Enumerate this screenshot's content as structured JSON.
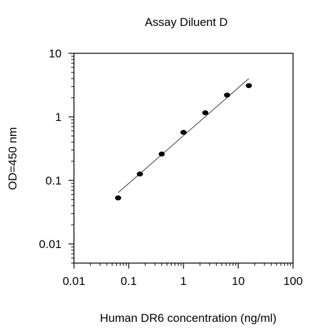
{
  "chart_data": {
    "type": "scatter",
    "title": "Assay Diluent D",
    "xlabel": "Human DR6 concentration (ng/ml)",
    "ylabel": "OD=450 nm",
    "xscale": "log",
    "yscale": "log",
    "xlim": [
      0.01,
      100
    ],
    "ylim": [
      0.005,
      10
    ],
    "xticks": [
      {
        "value": 0.01,
        "label": "0.01"
      },
      {
        "value": 0.1,
        "label": "0.1"
      },
      {
        "value": 1,
        "label": "1"
      },
      {
        "value": 10,
        "label": "10"
      },
      {
        "value": 100,
        "label": "100"
      }
    ],
    "yticks": [
      {
        "value": 0.01,
        "label": "0.01"
      },
      {
        "value": 0.1,
        "label": "0.1"
      },
      {
        "value": 1,
        "label": "1"
      },
      {
        "value": 10,
        "label": "10"
      }
    ],
    "grid": false,
    "series": [
      {
        "marker": "dot",
        "x": [
          0.064,
          0.16,
          0.4,
          1.0,
          2.5,
          6.25,
          15.6
        ],
        "y": [
          0.053,
          0.126,
          0.26,
          0.57,
          1.16,
          2.2,
          3.1
        ]
      }
    ],
    "fit_line": {
      "x": [
        0.064,
        15.6
      ],
      "y": [
        0.064,
        4.0
      ]
    },
    "colors": {
      "marker": "#000000",
      "axis": "#000000",
      "fit": "#333333"
    }
  }
}
